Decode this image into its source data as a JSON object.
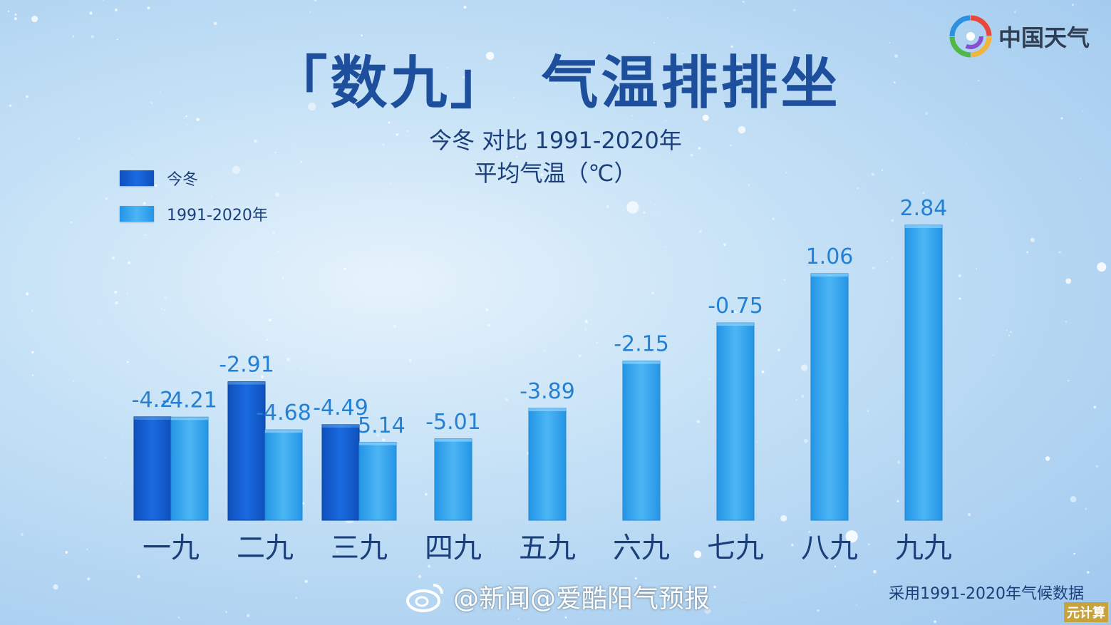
{
  "logo": {
    "text": "中国天气",
    "icon": "china-weather-swirl-icon"
  },
  "footer": {
    "note": "采用1991-2020年气候数据",
    "handle": "@新闻@爱酷阳气预报",
    "handle_icon": "weibo-icon",
    "corner_mark": "元计算"
  },
  "colors": {
    "this_winter": "#1561d6",
    "normal": "#33a5ee",
    "label": "#2480d4",
    "axis_text": "#1b3f7a",
    "title": "#1d4f9c"
  },
  "chart_data": {
    "type": "bar",
    "title": "「数九」　气温排排坐",
    "subtitle_line1": "今冬 对比 1991-2020年",
    "subtitle_line2": "平均气温（℃）",
    "categories": [
      "一九",
      "二九",
      "三九",
      "四九",
      "五九",
      "六九",
      "七九",
      "八九",
      "九九"
    ],
    "series": [
      {
        "name": "今冬",
        "values": [
          -4.2,
          -2.91,
          -4.49,
          null,
          null,
          null,
          null,
          null,
          null
        ],
        "labels": [
          "-4.2",
          "-2.91",
          "-4.49",
          "",
          "",
          "",
          "",
          "",
          ""
        ]
      },
      {
        "name": "1991-2020年",
        "values": [
          -4.21,
          -4.68,
          -5.14,
          -5.01,
          -3.89,
          -2.15,
          -0.75,
          1.06,
          2.84
        ],
        "labels": [
          "-4.21",
          "-4.68",
          "-5.14",
          "-5.01",
          "-3.89",
          "-2.15",
          "-0.75",
          "1.06",
          "2.84"
        ]
      }
    ],
    "xlabel": "",
    "ylabel": "",
    "ylim": [
      -8,
      2.84
    ],
    "grid": false,
    "legend_position": "top-left"
  }
}
